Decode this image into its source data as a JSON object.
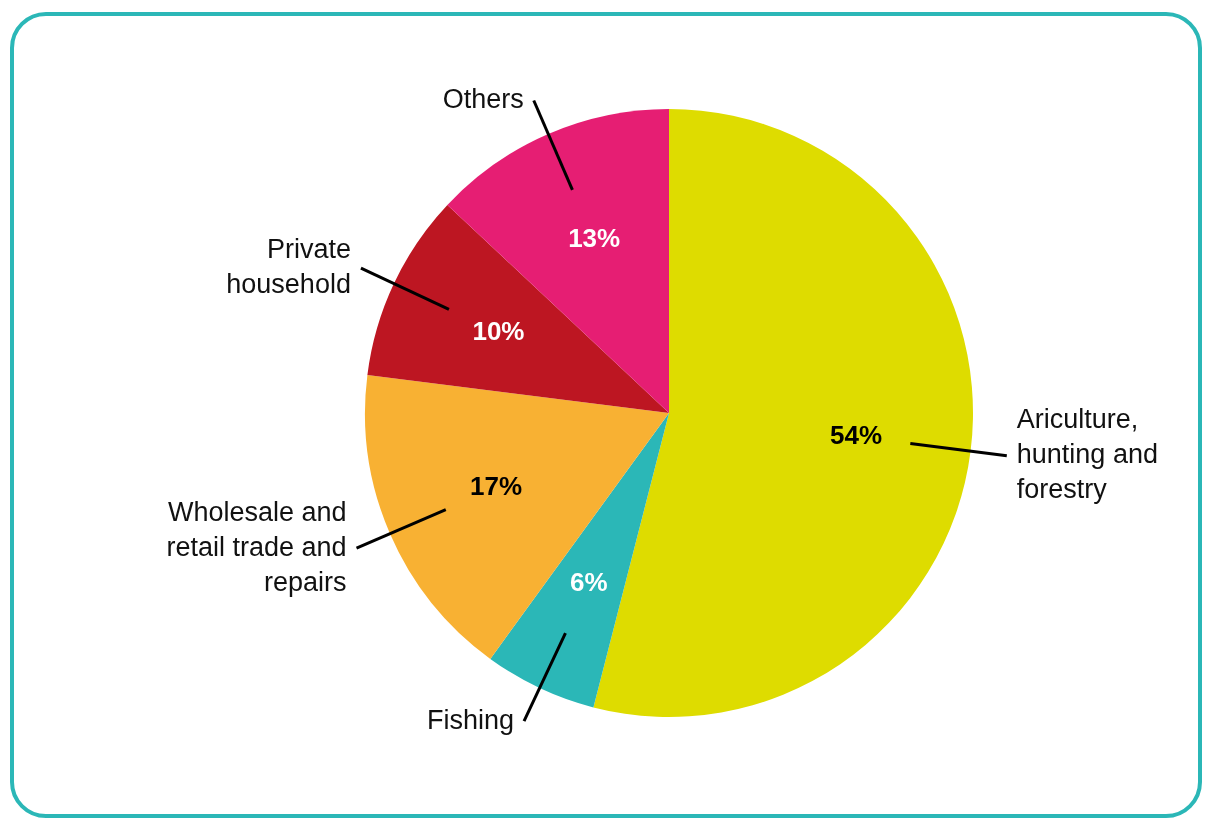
{
  "chart_data": {
    "type": "pie",
    "categories": [
      "Ariculture, hunting and forestry",
      "Fishing",
      "Wholesale and retail trade and repairs",
      "Private household",
      "Others"
    ],
    "values": [
      54,
      6,
      17,
      10,
      13
    ],
    "colors": [
      "#dedc00",
      "#2bb7b7",
      "#f8b133",
      "#bd1622",
      "#e61e73"
    ],
    "value_labels": [
      "54%",
      "6%",
      "17%",
      "10%",
      "13%"
    ],
    "legend": false
  }
}
